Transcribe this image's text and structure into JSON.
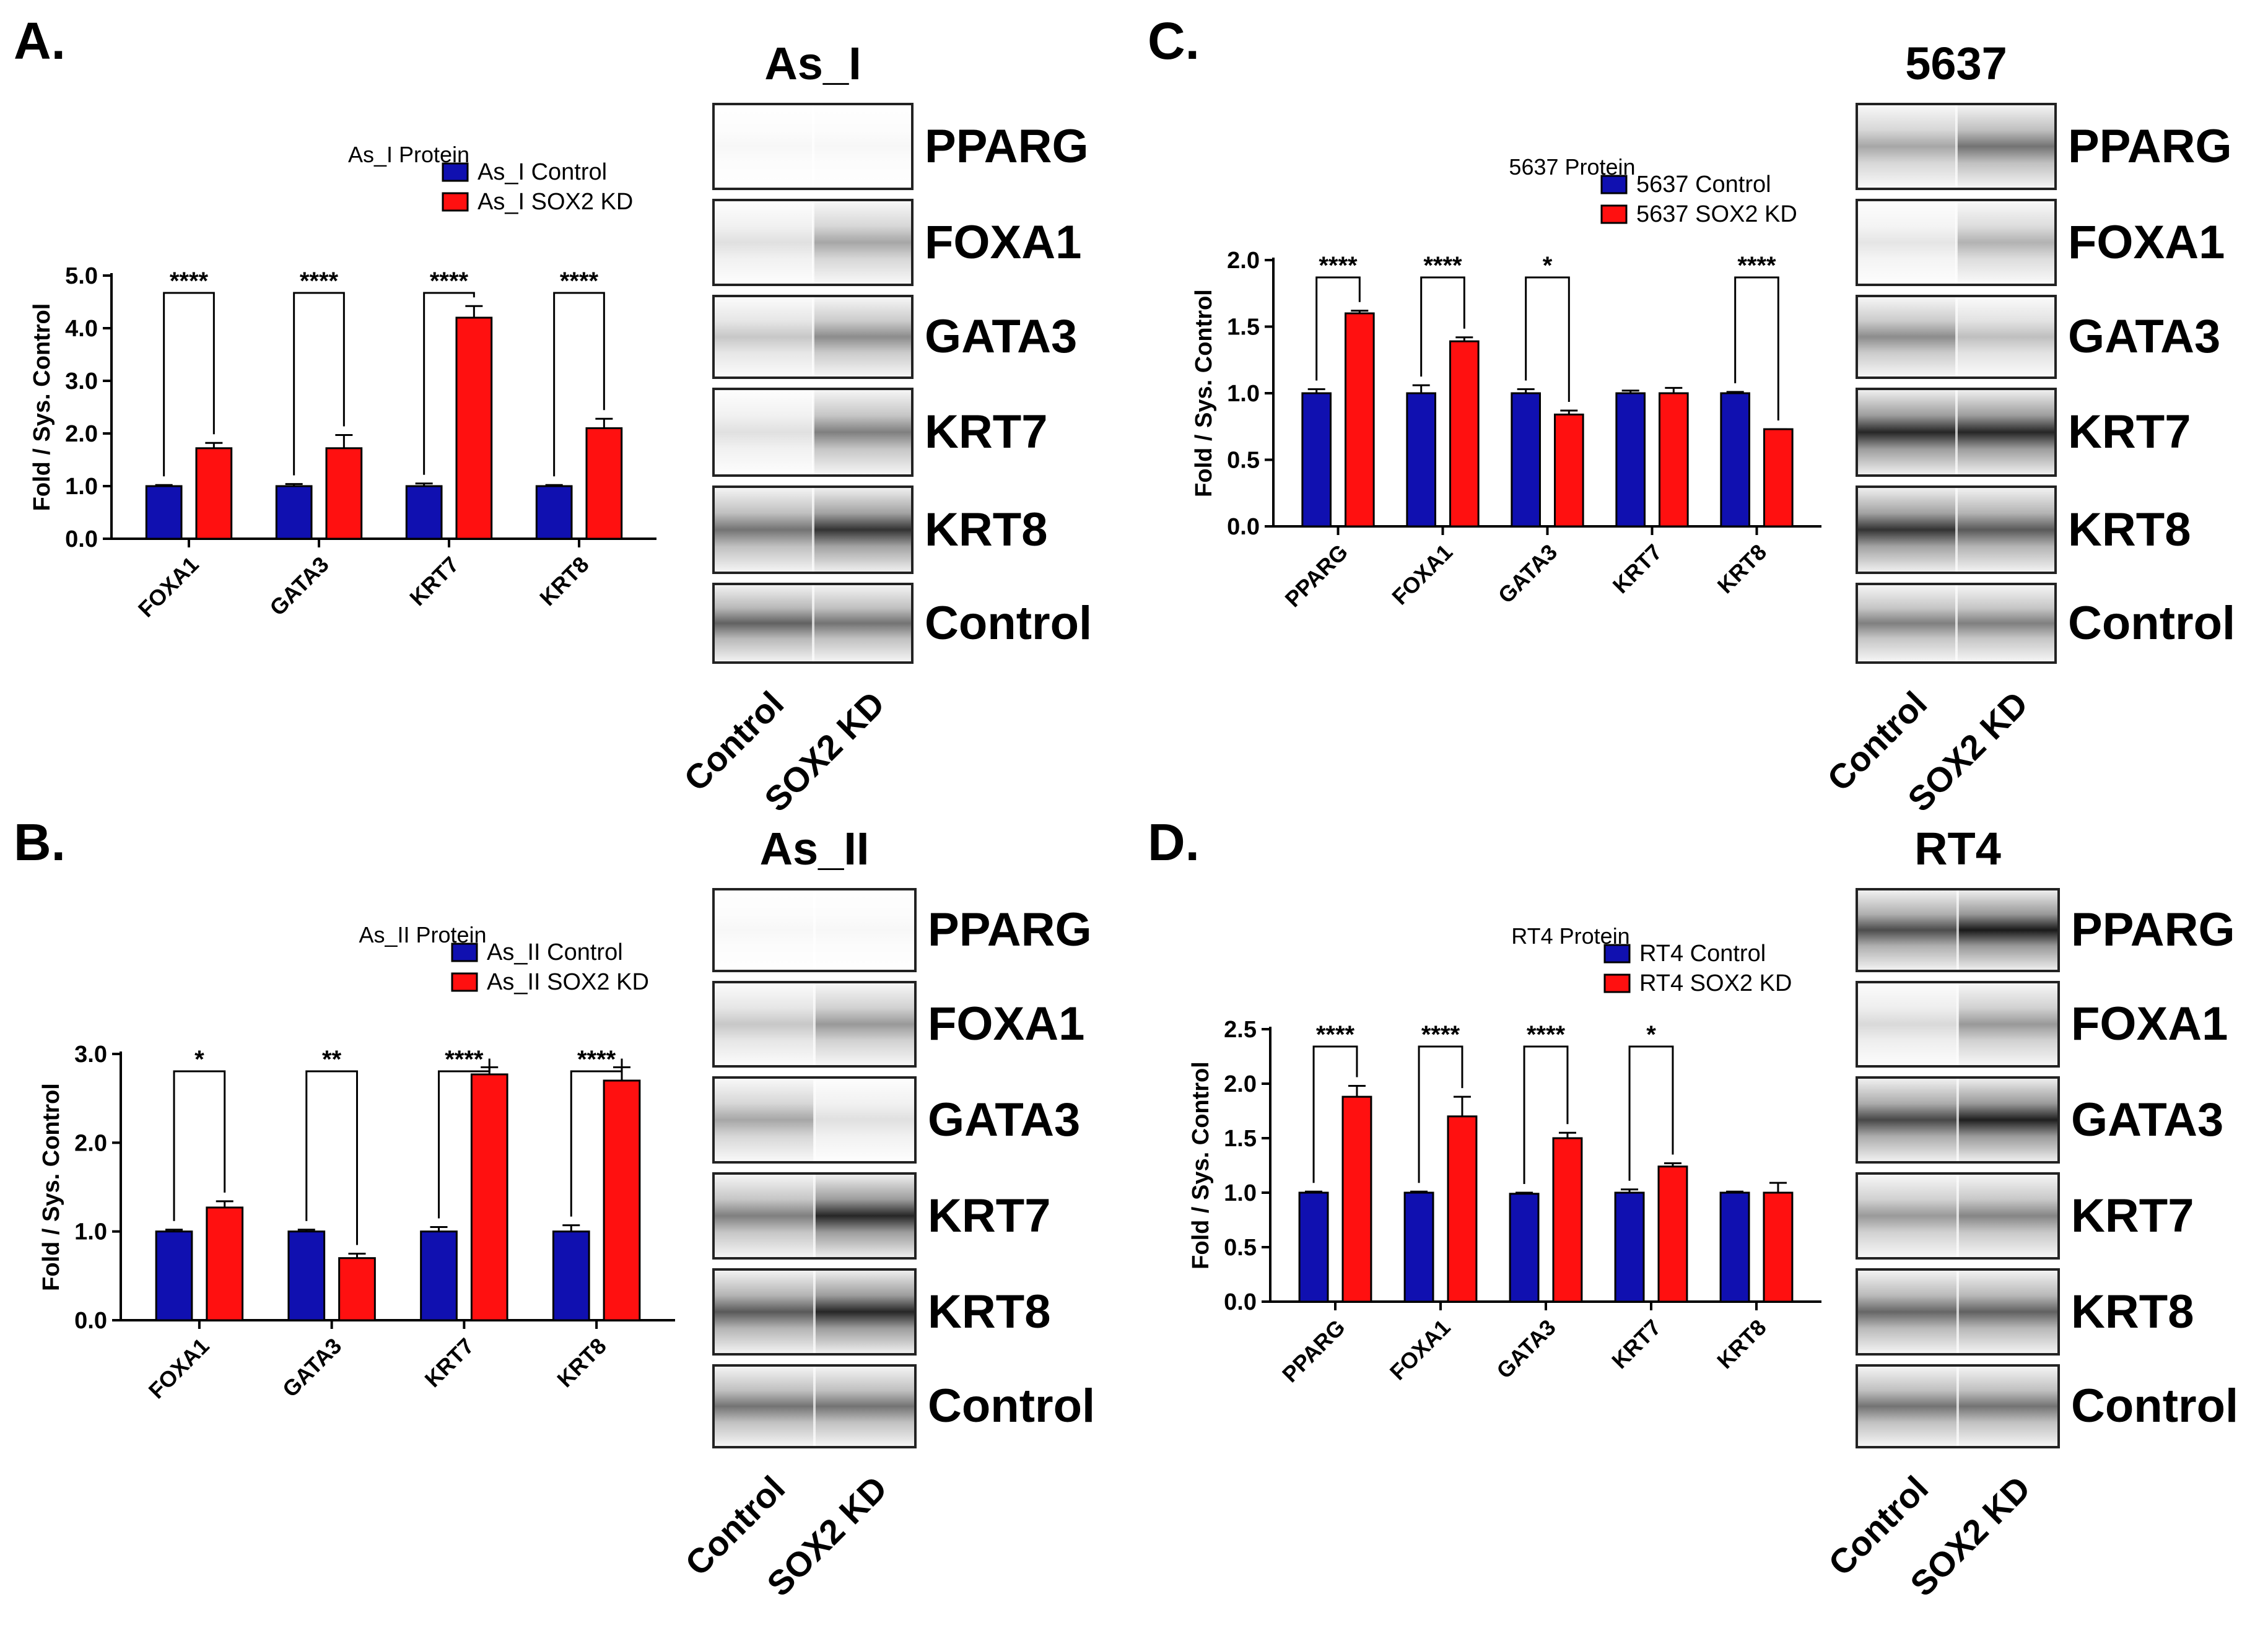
{
  "panels": [
    {
      "letter": "A.",
      "blot": {
        "title": "As_I",
        "rows": [
          {
            "label": "PPARG",
            "intensity": [
              0.02,
              0.03
            ]
          },
          {
            "label": "FOXA1",
            "intensity": [
              0.12,
              0.35
            ]
          },
          {
            "label": "GATA3",
            "intensity": [
              0.22,
              0.45
            ]
          },
          {
            "label": "KRT7",
            "intensity": [
              0.12,
              0.5
            ]
          },
          {
            "label": "KRT8",
            "intensity": [
              0.55,
              0.8
            ]
          },
          {
            "label": "Control",
            "intensity": [
              0.62,
              0.55
            ]
          }
        ],
        "lane_labels": [
          "Control",
          "SOX2 KD"
        ]
      },
      "chart_data": {
        "type": "bar",
        "title": "As_I Protein",
        "ylabel": "Fold / Sys. Control",
        "xlabel": "",
        "categories": [
          "FOXA1",
          "GATA3",
          "KRT7",
          "KRT8"
        ],
        "series": [
          {
            "name": "As_I Control",
            "color": "#1010b0",
            "values": [
              1.0,
              1.0,
              1.0,
              1.0
            ],
            "errors": [
              0.02,
              0.04,
              0.05,
              0.02
            ]
          },
          {
            "name": "As_I SOX2 KD",
            "color": "#ff1010",
            "values": [
              1.72,
              1.72,
              4.2,
              2.1
            ],
            "errors": [
              0.1,
              0.25,
              0.22,
              0.18
            ]
          }
        ],
        "significance": [
          "****",
          "****",
          "****",
          "****"
        ],
        "ylim": [
          0,
          5
        ],
        "yticks": [
          "0.0",
          "1.0",
          "2.0",
          "3.0",
          "4.0",
          "5.0"
        ],
        "yticks_values": [
          0,
          1,
          2,
          3,
          4,
          5
        ],
        "legend_position": "top-right"
      }
    },
    {
      "letter": "B.",
      "blot": {
        "title": "As_II",
        "rows": [
          {
            "label": "PPARG",
            "intensity": [
              0.02,
              0.03
            ]
          },
          {
            "label": "FOXA1",
            "intensity": [
              0.22,
              0.4
            ]
          },
          {
            "label": "GATA3",
            "intensity": [
              0.35,
              0.12
            ]
          },
          {
            "label": "KRT7",
            "intensity": [
              0.5,
              0.85
            ]
          },
          {
            "label": "KRT8",
            "intensity": [
              0.65,
              0.85
            ]
          },
          {
            "label": "Control",
            "intensity": [
              0.55,
              0.55
            ]
          }
        ],
        "lane_labels": [
          "Control",
          "SOX2 KD"
        ]
      },
      "chart_data": {
        "type": "bar",
        "title": "As_II Protein",
        "ylabel": "Fold / Sys. Control",
        "xlabel": "",
        "categories": [
          "FOXA1",
          "GATA3",
          "KRT7",
          "KRT8"
        ],
        "series": [
          {
            "name": "As_II Control",
            "color": "#1010b0",
            "values": [
              1.0,
              1.0,
              1.0,
              1.0
            ],
            "errors": [
              0.02,
              0.02,
              0.05,
              0.07
            ]
          },
          {
            "name": "As_II SOX2 KD",
            "color": "#ff1010",
            "values": [
              1.27,
              0.7,
              2.77,
              2.7
            ],
            "errors": [
              0.07,
              0.05,
              0.08,
              0.15
            ]
          }
        ],
        "significance": [
          "*",
          "**",
          "****",
          "****"
        ],
        "ylim": [
          0,
          3
        ],
        "yticks": [
          "0.0",
          "1.0",
          "2.0",
          "3.0"
        ],
        "yticks_values": [
          0,
          1,
          2,
          3
        ],
        "legend_position": "top-right"
      }
    },
    {
      "letter": "C.",
      "blot": {
        "title": "5637",
        "rows": [
          {
            "label": "PPARG",
            "intensity": [
              0.35,
              0.55
            ]
          },
          {
            "label": "FOXA1",
            "intensity": [
              0.1,
              0.3
            ]
          },
          {
            "label": "GATA3",
            "intensity": [
              0.45,
              0.25
            ]
          },
          {
            "label": "KRT7",
            "intensity": [
              0.85,
              0.85
            ]
          },
          {
            "label": "KRT8",
            "intensity": [
              0.8,
              0.65
            ]
          },
          {
            "label": "Control",
            "intensity": [
              0.5,
              0.5
            ]
          }
        ],
        "lane_labels": [
          "Control",
          "SOX2 KD"
        ]
      },
      "chart_data": {
        "type": "bar",
        "title": "5637 Protein",
        "ylabel": "Fold / Sys. Control",
        "xlabel": "",
        "categories": [
          "PPARG",
          "FOXA1",
          "GATA3",
          "KRT7",
          "KRT8"
        ],
        "series": [
          {
            "name": "5637 Control",
            "color": "#1010b0",
            "values": [
              1.0,
              1.0,
              1.0,
              1.0,
              1.0
            ],
            "errors": [
              0.03,
              0.06,
              0.03,
              0.02,
              0.01
            ]
          },
          {
            "name": "5637 SOX2 KD",
            "color": "#ff1010",
            "values": [
              1.6,
              1.39,
              0.84,
              1.0,
              0.73
            ],
            "errors": [
              0.02,
              0.03,
              0.03,
              0.04,
              0.0
            ]
          }
        ],
        "significance": [
          "****",
          "****",
          "*",
          "",
          "****"
        ],
        "ylim": [
          0,
          2
        ],
        "yticks": [
          "0.0",
          "0.5",
          "1.0",
          "1.5",
          "2.0"
        ],
        "yticks_values": [
          0,
          0.5,
          1,
          1.5,
          2
        ],
        "legend_position": "top-right"
      }
    },
    {
      "letter": "D.",
      "blot": {
        "title": "RT4",
        "rows": [
          {
            "label": "PPARG",
            "intensity": [
              0.7,
              0.9
            ]
          },
          {
            "label": "FOXA1",
            "intensity": [
              0.15,
              0.4
            ]
          },
          {
            "label": "GATA3",
            "intensity": [
              0.72,
              0.88
            ]
          },
          {
            "label": "KRT7",
            "intensity": [
              0.4,
              0.48
            ]
          },
          {
            "label": "KRT8",
            "intensity": [
              0.6,
              0.62
            ]
          },
          {
            "label": "Control",
            "intensity": [
              0.55,
              0.55
            ]
          }
        ],
        "lane_labels": [
          "Control",
          "SOX2 KD"
        ]
      },
      "chart_data": {
        "type": "bar",
        "title": "RT4 Protein",
        "ylabel": "Fold / Sys. Control",
        "xlabel": "",
        "categories": [
          "PPARG",
          "FOXA1",
          "GATA3",
          "KRT7",
          "KRT8"
        ],
        "series": [
          {
            "name": "RT4 Control",
            "color": "#1010b0",
            "values": [
              1.0,
              1.0,
              0.99,
              1.0,
              1.0
            ],
            "errors": [
              0.01,
              0.01,
              0.01,
              0.03,
              0.01
            ]
          },
          {
            "name": "RT4 SOX2 KD",
            "color": "#ff1010",
            "values": [
              1.88,
              1.7,
              1.5,
              1.24,
              1.0
            ],
            "errors": [
              0.1,
              0.18,
              0.05,
              0.03,
              0.09
            ]
          }
        ],
        "significance": [
          "****",
          "****",
          "****",
          "*",
          ""
        ],
        "ylim": [
          0,
          2.5
        ],
        "yticks": [
          "0.0",
          "0.5",
          "1.0",
          "1.5",
          "2.0",
          "2.5"
        ],
        "yticks_values": [
          0,
          0.5,
          1,
          1.5,
          2,
          2.5
        ],
        "legend_position": "top-right"
      }
    }
  ]
}
